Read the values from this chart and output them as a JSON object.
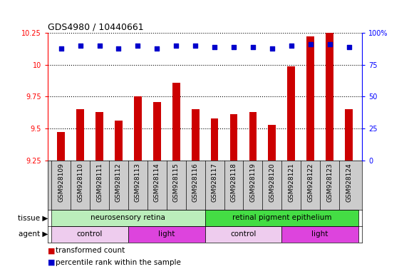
{
  "title": "GDS4980 / 10440661",
  "samples": [
    "GSM928109",
    "GSM928110",
    "GSM928111",
    "GSM928112",
    "GSM928113",
    "GSM928114",
    "GSM928115",
    "GSM928116",
    "GSM928117",
    "GSM928118",
    "GSM928119",
    "GSM928120",
    "GSM928121",
    "GSM928122",
    "GSM928123",
    "GSM928124"
  ],
  "transformed_count": [
    9.47,
    9.65,
    9.63,
    9.56,
    9.75,
    9.71,
    9.86,
    9.65,
    9.58,
    9.61,
    9.63,
    9.53,
    9.99,
    10.22,
    10.25,
    9.65
  ],
  "percentile_rank": [
    88,
    90,
    90,
    88,
    90,
    88,
    90,
    90,
    89,
    89,
    89,
    88,
    90,
    91,
    91,
    89
  ],
  "bar_color": "#cc0000",
  "dot_color": "#0000cc",
  "ylim_left": [
    9.25,
    10.25
  ],
  "ylim_right": [
    0,
    100
  ],
  "yticks_left": [
    9.25,
    9.5,
    9.75,
    10.0,
    10.25
  ],
  "ytick_labels_left": [
    "9.25",
    "9.5",
    "9.75",
    "10",
    "10.25"
  ],
  "yticks_right": [
    0,
    25,
    50,
    75,
    100
  ],
  "ytick_labels_right": [
    "0",
    "25",
    "50",
    "75",
    "100%"
  ],
  "tissue_groups": [
    {
      "label": "neurosensory retina",
      "start": 0,
      "end": 8,
      "color": "#bbeebb"
    },
    {
      "label": "retinal pigment epithelium",
      "start": 8,
      "end": 16,
      "color": "#44dd44"
    }
  ],
  "agent_groups": [
    {
      "label": "control",
      "start": 0,
      "end": 4,
      "color": "#eeccee"
    },
    {
      "label": "light",
      "start": 4,
      "end": 8,
      "color": "#dd44dd"
    },
    {
      "label": "control",
      "start": 8,
      "end": 12,
      "color": "#eeccee"
    },
    {
      "label": "light",
      "start": 12,
      "end": 16,
      "color": "#dd44dd"
    }
  ],
  "legend_items": [
    {
      "label": "transformed count",
      "color": "#cc0000"
    },
    {
      "label": "percentile rank within the sample",
      "color": "#0000cc"
    }
  ],
  "tissue_label": "tissue",
  "agent_label": "agent",
  "xticklabel_bg": "#cccccc",
  "plot_bg_color": "#ffffff"
}
